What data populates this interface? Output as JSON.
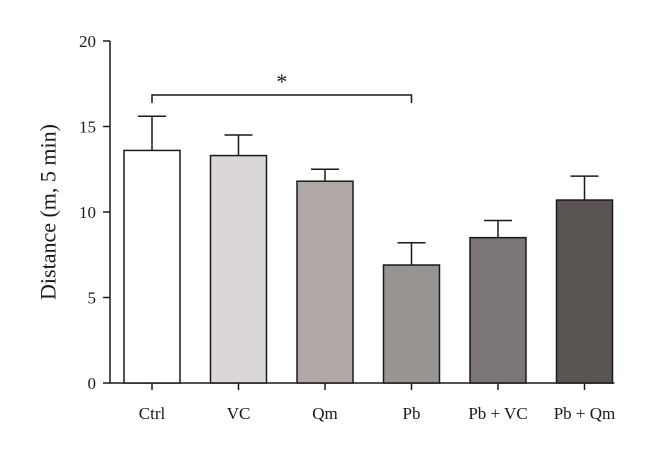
{
  "chart_data": {
    "type": "bar",
    "categories": [
      "Ctrl",
      "VC",
      "Qm",
      "Pb",
      "Pb + VC",
      "Pb + Qm"
    ],
    "values": [
      13.6,
      13.3,
      11.8,
      6.9,
      8.5,
      10.7
    ],
    "error_upper": [
      15.6,
      14.5,
      12.5,
      8.2,
      9.5,
      12.1
    ],
    "bar_colors": [
      "#ffffff",
      "#dcd7d7",
      "#b0a8a7",
      "#999392",
      "#7b7675",
      "#5a5452"
    ],
    "xlabel": "",
    "ylabel": "Distance (m, 5 min)",
    "ylim": [
      0,
      20
    ],
    "yticks": [
      0,
      5,
      10,
      15,
      20
    ],
    "grid": false,
    "significance": {
      "from": "Ctrl",
      "to": "Pb",
      "label": "*"
    }
  }
}
